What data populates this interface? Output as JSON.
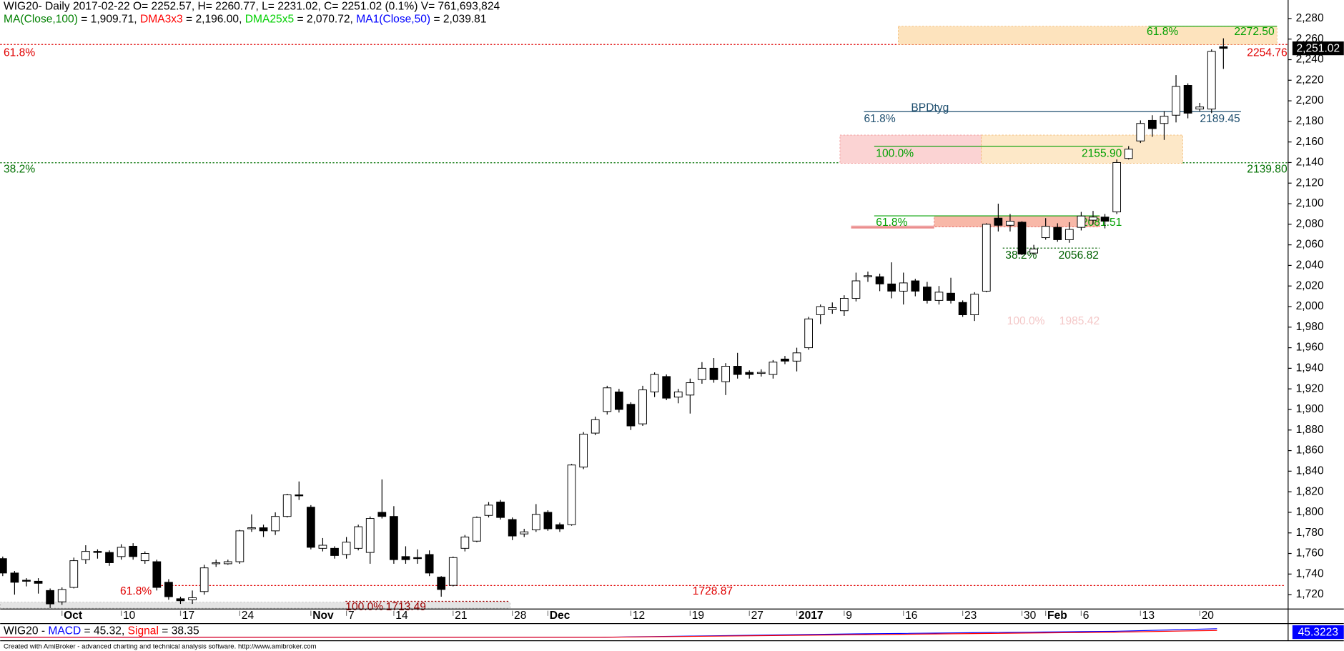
{
  "chart_data": {
    "type": "candlestick",
    "title": "WIG20- Daily 2017-02-22 O= 2252.57, H= 2260.77, L= 2231.02, C= 2251.02 (0.1%) V= 761,693,824",
    "indicators": [
      {
        "text": "MA(Close,100)",
        "color": "#008000"
      },
      {
        "text": " = 1,909.71, ",
        "color": "#000000"
      },
      {
        "text": "DMA3x3",
        "color": "#ff0000"
      },
      {
        "text": " = 2,196.00, ",
        "color": "#000000"
      },
      {
        "text": "DMA25x5",
        "color": "#00d000"
      },
      {
        "text": " = 2,070.72, ",
        "color": "#000000"
      },
      {
        "text": "MA1(Close,50)",
        "color": "#0000ff"
      },
      {
        "text": " = 2,039.81",
        "color": "#000000"
      }
    ],
    "categories": [
      null,
      null,
      null,
      null,
      null,
      "Oct",
      null,
      null,
      null,
      null,
      "10",
      null,
      null,
      null,
      null,
      "17",
      null,
      null,
      null,
      null,
      "24",
      null,
      null,
      null,
      null,
      null,
      "Nov",
      null,
      null,
      "7",
      null,
      null,
      null,
      "14",
      null,
      null,
      null,
      null,
      "21",
      null,
      null,
      null,
      null,
      "28",
      null,
      null,
      "Dec",
      null,
      null,
      null,
      null,
      null,
      null,
      "12",
      null,
      null,
      null,
      null,
      "19",
      null,
      null,
      null,
      null,
      "27",
      null,
      null,
      null,
      "2017",
      null,
      null,
      null,
      "9",
      null,
      null,
      null,
      null,
      "16",
      null,
      null,
      null,
      null,
      "23",
      null,
      null,
      null,
      null,
      "30",
      null,
      "Feb",
      null,
      null,
      "6",
      null,
      null,
      null,
      null,
      "13",
      null,
      null,
      null,
      null,
      "20",
      null,
      null
    ],
    "open": [
      1755,
      1741,
      1734,
      1733,
      1724,
      1713,
      1727,
      1754,
      1762,
      1761,
      1757,
      1767,
      1753,
      1752,
      1732,
      1716,
      1715,
      1723,
      1750,
      1750,
      1752,
      1784,
      1785,
      1782,
      1796,
      1817,
      1805,
      1765,
      1765,
      1759,
      1765,
      1761,
      1800,
      1796,
      1757,
      1756,
      1759,
      1737,
      1729,
      1765,
      1772,
      1797,
      1810,
      1793,
      1779,
      1783,
      1800,
      1788,
      1788,
      1844,
      1877,
      1898,
      1917,
      1905,
      1886,
      1917,
      1932,
      1912,
      1914,
      1929,
      1940,
      1927,
      1942,
      1936,
      1935,
      1934,
      1949,
      1947,
      1960,
      1992,
      1997,
      1996,
      2008,
      2029,
      2029,
      2022,
      2015,
      2025,
      2019,
      2006,
      2013,
      2004,
      1992,
      2015,
      2086,
      2079,
      2082,
      2052,
      2067,
      2077,
      2065,
      2077,
      2084,
      2087,
      2092,
      2144,
      2161,
      2181,
      2178,
      2186,
      2215,
      2192,
      2192,
      2252.57
    ],
    "high": [
      1757,
      1743,
      1736,
      1736,
      1726,
      1727,
      1756,
      1768,
      1764,
      1763,
      1769,
      1770,
      1762,
      1754,
      1735,
      1718,
      1724,
      1749,
      1754,
      1754,
      1783,
      1798,
      1788,
      1800,
      1818,
      1830,
      1807,
      1775,
      1767,
      1776,
      1788,
      1796,
      1832,
      1806,
      1767,
      1764,
      1763,
      1738,
      1757,
      1778,
      1796,
      1810,
      1812,
      1795,
      1784,
      1808,
      1802,
      1790,
      1847,
      1878,
      1893,
      1923,
      1920,
      1907,
      1923,
      1936,
      1934,
      1920,
      1930,
      1946,
      1950,
      1945,
      1955,
      1938,
      1939,
      1948,
      1952,
      1960,
      1990,
      2002,
      2004,
      2011,
      2033,
      2034,
      2032,
      2043,
      2033,
      2027,
      2024,
      2020,
      2028,
      2006,
      2014,
      2081,
      2100,
      2090,
      2083,
      2060,
      2086,
      2081,
      2082,
      2092,
      2093,
      2090,
      2143,
      2156,
      2181,
      2186,
      2190,
      2225,
      2217,
      2198,
      2250,
      2260.77
    ],
    "low": [
      1738,
      1720,
      1728,
      1721,
      1707,
      1710,
      1726,
      1750,
      1755,
      1748,
      1754,
      1754,
      1750,
      1724,
      1715,
      1711,
      1711,
      1720,
      1747,
      1749,
      1750,
      1781,
      1776,
      1778,
      1795,
      1812,
      1764,
      1762,
      1755,
      1755,
      1763,
      1750,
      1794,
      1750,
      1750,
      1750,
      1738,
      1718,
      1728,
      1762,
      1771,
      1795,
      1793,
      1773,
      1776,
      1781,
      1782,
      1781,
      1787,
      1842,
      1875,
      1895,
      1897,
      1880,
      1884,
      1912,
      1909,
      1906,
      1896,
      1925,
      1926,
      1914,
      1930,
      1930,
      1932,
      1930,
      1944,
      1937,
      1958,
      1983,
      1993,
      1991,
      2005,
      2024,
      2015,
      2008,
      2002,
      2010,
      2003,
      2002,
      2003,
      1990,
      1986,
      2014,
      2073,
      2073,
      2050,
      2050,
      2065,
      2063,
      2062,
      2074,
      2080,
      2076,
      2090,
      2143,
      2159,
      2165,
      2162,
      2179,
      2183,
      2190,
      2188,
      2231.02
    ],
    "close": [
      1741,
      1732,
      1733,
      1731,
      1711,
      1725,
      1753,
      1762,
      1761,
      1751,
      1766,
      1757,
      1760,
      1727,
      1718,
      1714,
      1717,
      1746,
      1751,
      1752,
      1782,
      1785,
      1782,
      1796,
      1817,
      1816,
      1766,
      1768,
      1758,
      1771,
      1786,
      1794,
      1796,
      1754,
      1754,
      1755,
      1741,
      1725,
      1756,
      1776,
      1795,
      1807,
      1795,
      1777,
      1781,
      1798,
      1784,
      1784,
      1846,
      1876,
      1890,
      1921,
      1900,
      1884,
      1919,
      1934,
      1911,
      1917,
      1926,
      1940,
      1929,
      1942,
      1934,
      1934,
      1936,
      1946,
      1947,
      1955,
      1988,
      2000,
      1999,
      2008,
      2025,
      2030,
      2022,
      2015,
      2023,
      2015,
      2006,
      2014,
      2006,
      1992,
      2012,
      2080,
      2079,
      2083,
      2051,
      2056,
      2078,
      2065,
      2075,
      2088,
      2087,
      2083,
      2140,
      2153,
      2178,
      2173,
      2185,
      2214,
      2188,
      2194,
      2248,
      2251.02
    ],
    "up_color": "#ffffff",
    "down_color": "#000000",
    "last_label": "2,251.02",
    "ylim": [
      1706,
      2298
    ],
    "yticks": [
      {
        "value": 1720,
        "label": "1,720"
      },
      {
        "value": 1740,
        "label": "1,740"
      },
      {
        "value": 1760,
        "label": "1,760"
      },
      {
        "value": 1780,
        "label": "1,780"
      },
      {
        "value": 1800,
        "label": "1,800"
      },
      {
        "value": 1820,
        "label": "1,820"
      },
      {
        "value": 1840,
        "label": "1,840"
      },
      {
        "value": 1860,
        "label": "1,860"
      },
      {
        "value": 1880,
        "label": "1,880"
      },
      {
        "value": 1900,
        "label": "1,900"
      },
      {
        "value": 1920,
        "label": "1,920"
      },
      {
        "value": 1940,
        "label": "1,940"
      },
      {
        "value": 1960,
        "label": "1,960"
      },
      {
        "value": 1980,
        "label": "1,980"
      },
      {
        "value": 2000,
        "label": "2,000"
      },
      {
        "value": 2020,
        "label": "2,020"
      },
      {
        "value": 2040,
        "label": "2,040"
      },
      {
        "value": 2060,
        "label": "2,060"
      },
      {
        "value": 2080,
        "label": "2,080"
      },
      {
        "value": 2100,
        "label": "2,100"
      },
      {
        "value": 2120,
        "label": "2,120"
      },
      {
        "value": 2140,
        "label": "2,140"
      },
      {
        "value": 2160,
        "label": "2,160"
      },
      {
        "value": 2180,
        "label": "2,180"
      },
      {
        "value": 2200,
        "label": "2,200"
      },
      {
        "value": 2220,
        "label": "2,220"
      },
      {
        "value": 2240,
        "label": "2,240"
      },
      {
        "value": 2260,
        "label": "2,260"
      },
      {
        "value": 2280,
        "label": "2,280"
      }
    ],
    "grid": false,
    "levels": [
      {
        "value": 2254.76,
        "label": "61.8%",
        "price_label": "2254.76",
        "color": "#e00000"
      },
      {
        "value": 2139.8,
        "label": "38.2%",
        "price_label": "2139.80",
        "color": "#007000"
      },
      {
        "value": 1728.87,
        "label": "61.8%",
        "price_label": "1728.87",
        "color": "#e00000"
      },
      {
        "value": 1713.49,
        "label": "100.0%",
        "price_label": "1713.49",
        "color": "#a00000"
      },
      {
        "value": 2272.5,
        "label": "61.8%",
        "price_label": "2272.50",
        "color": "#00a000"
      },
      {
        "value": 2189.45,
        "label": "61.8%",
        "price_label": "2189.45",
        "name": "BPDtyg",
        "color": "#1f4f6f"
      },
      {
        "value": 2155.9,
        "label": "100.0%",
        "price_label": "2155.90",
        "color": "#00a000"
      },
      {
        "value": 2081.51,
        "label": "61.8%",
        "price_label": "2081.51",
        "color": "#00a000"
      },
      {
        "value": 2056.82,
        "label": "38.2%",
        "price_label": "2056.82",
        "color": "#006000"
      },
      {
        "value": 1985.42,
        "label": "100.0%",
        "price_label": "1985.42",
        "color": "#f4c8c8"
      }
    ],
    "macd_legend": [
      {
        "text": "WIG20 - ",
        "color": "#000000"
      },
      {
        "text": "MACD",
        "color": "#0000ff"
      },
      {
        "text": " = 45.32, ",
        "color": "#000000"
      },
      {
        "text": "Signal",
        "color": "#ff0000"
      },
      {
        "text": " = 38.35",
        "color": "#000000"
      }
    ],
    "macd_last": "45.3223",
    "footer": "Created with AmiBroker - advanced charting and technical analysis software. http://www.amibroker.com"
  }
}
